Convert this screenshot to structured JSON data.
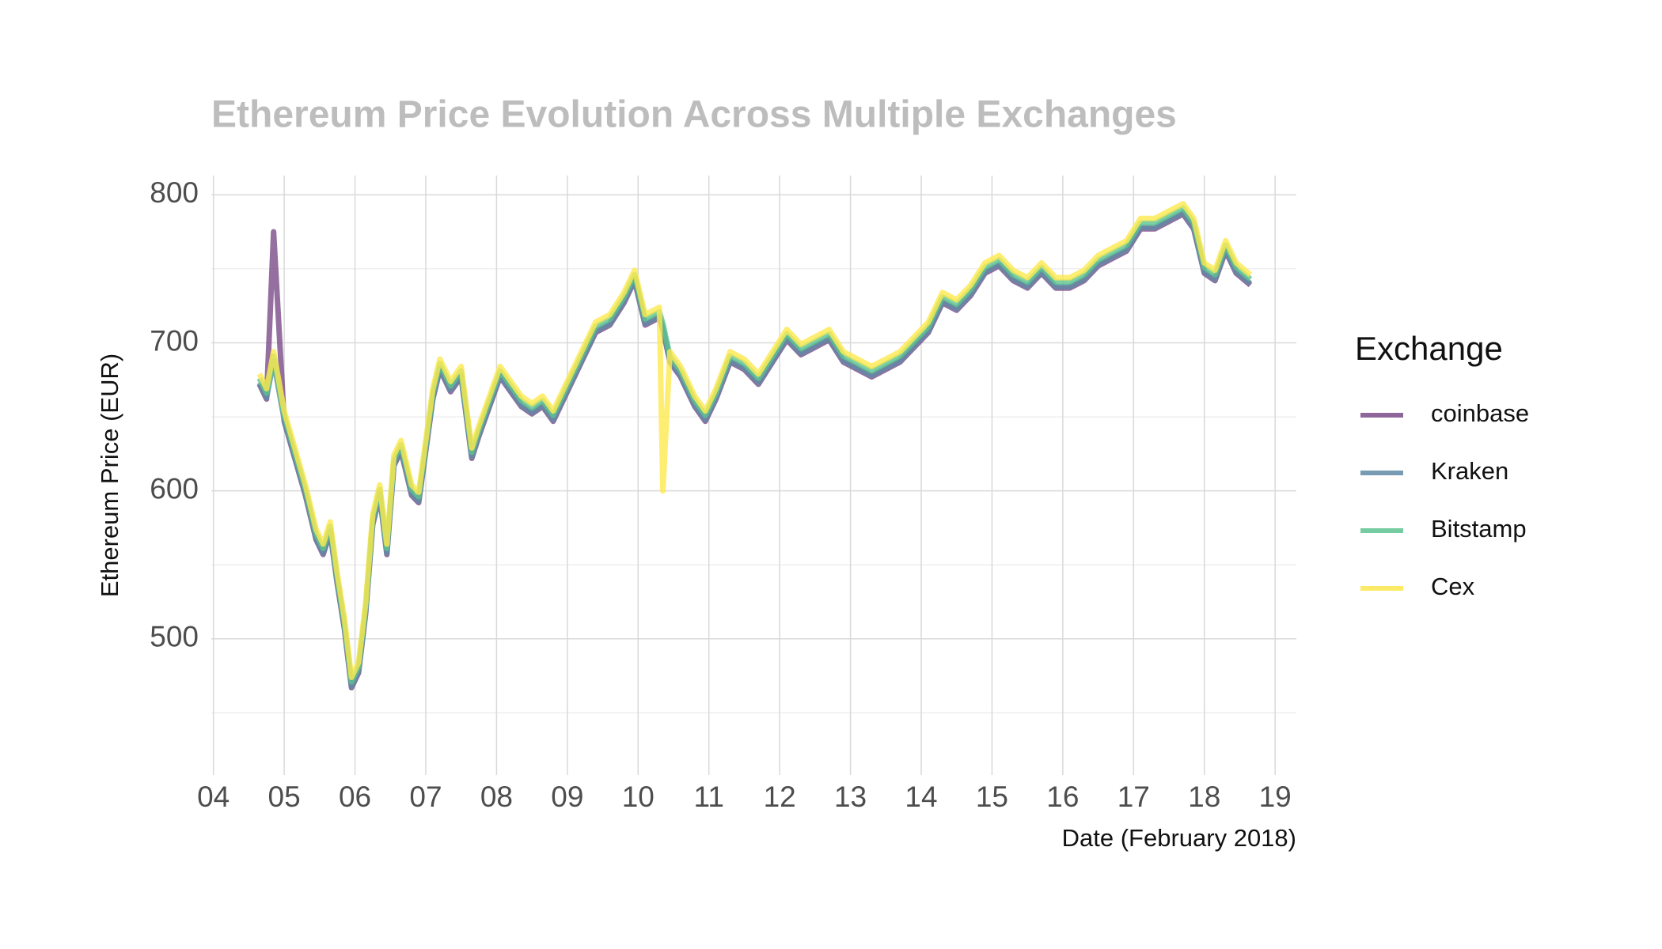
{
  "chart_data": {
    "type": "line",
    "title": "Ethereum Price Evolution Across Multiple Exchanges",
    "x_label": "Date (February 2018)",
    "y_label": "Ethereum Price (EUR)",
    "legend_title": "Exchange",
    "legend": "right",
    "grid": true,
    "x": [
      4.65,
      4.75,
      4.85,
      5.0,
      5.15,
      5.3,
      5.45,
      5.55,
      5.65,
      5.75,
      5.85,
      5.95,
      6.05,
      6.15,
      6.25,
      6.35,
      6.45,
      6.55,
      6.65,
      6.8,
      6.9,
      7.0,
      7.1,
      7.2,
      7.35,
      7.5,
      7.65,
      7.75,
      7.9,
      8.05,
      8.2,
      8.35,
      8.5,
      8.65,
      8.8,
      9.0,
      9.2,
      9.4,
      9.6,
      9.8,
      9.95,
      10.1,
      10.3,
      10.35,
      10.45,
      10.6,
      10.8,
      10.95,
      11.1,
      11.3,
      11.5,
      11.7,
      11.9,
      12.1,
      12.3,
      12.5,
      12.7,
      12.9,
      13.1,
      13.3,
      13.5,
      13.7,
      13.9,
      14.1,
      14.3,
      14.5,
      14.7,
      14.9,
      15.1,
      15.3,
      15.5,
      15.7,
      15.9,
      16.1,
      16.3,
      16.5,
      16.7,
      16.9,
      17.1,
      17.3,
      17.5,
      17.7,
      17.85,
      18.0,
      18.15,
      18.3,
      18.45,
      18.65
    ],
    "series": [
      {
        "name": "coinbase",
        "color": "#7b4b87",
        "values": [
          672,
          662,
          775,
          647,
          622,
          597,
          567,
          557,
          572,
          537,
          507,
          467,
          477,
          517,
          577,
          597,
          557,
          617,
          627,
          597,
          592,
          627,
          662,
          682,
          667,
          677,
          622,
          637,
          657,
          677,
          667,
          657,
          652,
          657,
          647,
          667,
          687,
          707,
          712,
          727,
          742,
          712,
          717,
          709,
          687,
          677,
          657,
          647,
          662,
          687,
          682,
          672,
          687,
          702,
          692,
          697,
          702,
          687,
          682,
          677,
          682,
          687,
          697,
          707,
          727,
          722,
          732,
          747,
          752,
          742,
          737,
          747,
          737,
          737,
          742,
          752,
          757,
          762,
          777,
          777,
          782,
          787,
          777,
          747,
          742,
          762,
          747,
          739
        ]
      },
      {
        "name": "Kraken",
        "color": "#5f8aa5",
        "values": [
          673,
          663,
          688,
          648,
          623,
          598,
          568,
          558,
          573,
          538,
          508,
          468,
          478,
          518,
          578,
          598,
          558,
          618,
          628,
          598,
          593,
          628,
          663,
          683,
          668,
          678,
          623,
          638,
          658,
          678,
          668,
          658,
          653,
          658,
          648,
          668,
          688,
          708,
          713,
          728,
          743,
          713,
          718,
          710,
          688,
          678,
          658,
          648,
          663,
          688,
          683,
          673,
          688,
          703,
          693,
          698,
          703,
          688,
          683,
          678,
          683,
          688,
          698,
          708,
          728,
          723,
          733,
          748,
          753,
          743,
          738,
          748,
          738,
          738,
          743,
          753,
          758,
          763,
          778,
          778,
          783,
          788,
          778,
          748,
          743,
          763,
          748,
          740
        ]
      },
      {
        "name": "Bitstamp",
        "color": "#5cc38f",
        "values": [
          676,
          666,
          691,
          651,
          626,
          601,
          571,
          561,
          576,
          541,
          511,
          471,
          481,
          521,
          581,
          601,
          561,
          621,
          631,
          601,
          596,
          631,
          666,
          686,
          671,
          681,
          626,
          641,
          661,
          681,
          671,
          661,
          656,
          661,
          651,
          671,
          691,
          711,
          716,
          731,
          746,
          716,
          721,
          713,
          691,
          681,
          661,
          651,
          666,
          691,
          686,
          676,
          691,
          706,
          696,
          701,
          706,
          691,
          686,
          681,
          686,
          691,
          701,
          711,
          731,
          726,
          736,
          751,
          756,
          746,
          741,
          751,
          741,
          741,
          746,
          756,
          761,
          766,
          781,
          781,
          786,
          791,
          781,
          751,
          746,
          766,
          751,
          743
        ]
      },
      {
        "name": "Cex",
        "color": "#fde84d",
        "values": [
          679,
          669,
          694,
          654,
          629,
          604,
          574,
          564,
          579,
          544,
          514,
          474,
          484,
          524,
          584,
          604,
          564,
          624,
          634,
          604,
          599,
          634,
          669,
          689,
          674,
          684,
          629,
          644,
          664,
          684,
          674,
          664,
          659,
          664,
          654,
          674,
          694,
          714,
          719,
          734,
          749,
          719,
          724,
          600,
          694,
          684,
          664,
          654,
          669,
          694,
          689,
          679,
          694,
          709,
          699,
          704,
          709,
          694,
          689,
          684,
          689,
          694,
          704,
          714,
          734,
          729,
          739,
          754,
          759,
          749,
          744,
          754,
          744,
          744,
          749,
          759,
          764,
          769,
          784,
          784,
          789,
          794,
          784,
          754,
          749,
          769,
          754,
          746
        ]
      }
    ],
    "xlim": [
      3.97,
      19.3
    ],
    "xticks": [
      {
        "value": 4,
        "label": "04"
      },
      {
        "value": 5,
        "label": "05"
      },
      {
        "value": 6,
        "label": "06"
      },
      {
        "value": 7,
        "label": "07"
      },
      {
        "value": 8,
        "label": "08"
      },
      {
        "value": 9,
        "label": "09"
      },
      10,
      11,
      12,
      13,
      14,
      15,
      16,
      17,
      18,
      19
    ],
    "ylim": [
      408,
      813
    ],
    "yticks": [
      500,
      600,
      700,
      800
    ],
    "yminorticks": [
      450,
      550,
      650,
      750
    ]
  }
}
